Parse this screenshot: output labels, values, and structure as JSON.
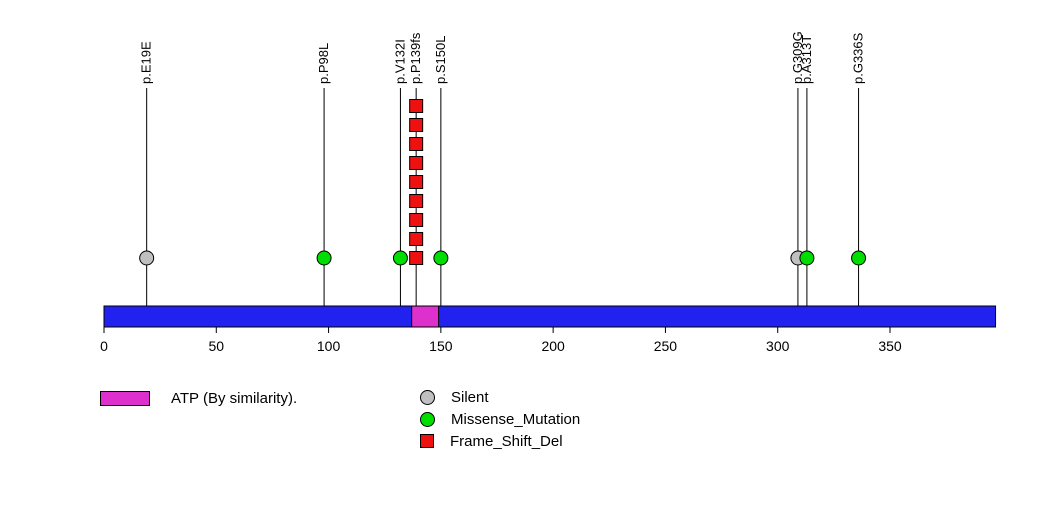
{
  "chart_data": {
    "type": "lollipop",
    "title": "",
    "xlabel": "",
    "ylabel": "",
    "protein_length": 397,
    "xlim": [
      0,
      397
    ],
    "x_ticks": [
      0,
      50,
      100,
      150,
      200,
      250,
      300,
      350
    ],
    "grid": false,
    "backbone_color": "#2222f0",
    "domains": [
      {
        "name": "ATP (By similarity).",
        "start": 137,
        "end": 149,
        "color": "#dd30cc"
      }
    ],
    "mutation_types": {
      "Silent": {
        "marker": "circle",
        "color": "#c0c0c0"
      },
      "Missense_Mutation": {
        "marker": "circle",
        "color": "#00dd00"
      },
      "Frame_Shift_Del": {
        "marker": "square",
        "color": "#ee1111"
      }
    },
    "mutations": [
      {
        "label": "p.E19E",
        "position": 19,
        "type": "Silent",
        "count": 1
      },
      {
        "label": "p.P98L",
        "position": 98,
        "type": "Missense_Mutation",
        "count": 1
      },
      {
        "label": "p.V132I",
        "position": 132,
        "type": "Missense_Mutation",
        "count": 1
      },
      {
        "label": "p.P139fs",
        "position": 139,
        "type": "Frame_Shift_Del",
        "count": 9
      },
      {
        "label": "p.S150L",
        "position": 150,
        "type": "Missense_Mutation",
        "count": 1
      },
      {
        "label": "p.G309G",
        "position": 309,
        "type": "Silent",
        "count": 1
      },
      {
        "label": "p.A313T",
        "position": 313,
        "type": "Missense_Mutation",
        "count": 1
      },
      {
        "label": "p.G336S",
        "position": 336,
        "type": "Missense_Mutation",
        "count": 1
      }
    ],
    "legend": [
      {
        "label": "ATP (By similarity).",
        "marker": "rect",
        "color": "#dd30cc"
      },
      {
        "label": "Silent",
        "marker": "circle",
        "color": "#c0c0c0"
      },
      {
        "label": "Missense_Mutation",
        "marker": "circle",
        "color": "#00dd00"
      },
      {
        "label": "Frame_Shift_Del",
        "marker": "square",
        "color": "#ee1111"
      }
    ],
    "legend_position": "bottom"
  }
}
